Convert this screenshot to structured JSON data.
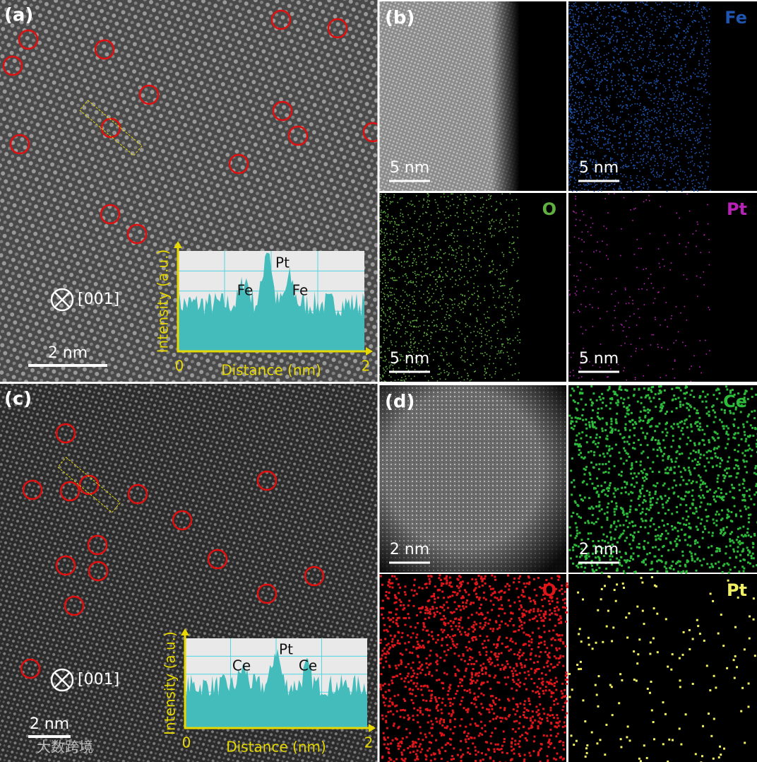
{
  "panels": [
    {
      "label": "(a)",
      "scale_bar": "2 nm",
      "zone_axis": "[001]",
      "profile": {
        "y_label": "Intensity (a.u.)",
        "x_label": "Distance (nm)",
        "x_ticks": [
          0,
          2
        ],
        "peaks": [
          "Fe",
          "Pt",
          "Fe"
        ]
      }
    },
    {
      "label": "(b)",
      "maps": [
        {
          "scale_bar": "5 nm"
        },
        {
          "element": "Fe",
          "color": "#1f55b0",
          "scale_bar": "5 nm"
        },
        {
          "element": "O",
          "color": "#5fb040",
          "scale_bar": "5 nm"
        },
        {
          "element": "Pt",
          "color": "#b820b8",
          "scale_bar": "5 nm"
        }
      ]
    },
    {
      "label": "(c)",
      "scale_bar": "2 nm",
      "zone_axis": "[001]",
      "profile": {
        "y_label": "Intensity (a.u.)",
        "x_label": "Distance (nm)",
        "x_ticks": [
          0,
          2
        ],
        "peaks": [
          "Ce",
          "Pt",
          "Ce"
        ]
      }
    },
    {
      "label": "(d)",
      "maps": [
        {
          "scale_bar": "2 nm"
        },
        {
          "element": "Ce",
          "color": "#2dbb3a",
          "scale_bar": "2 nm"
        },
        {
          "element": "O",
          "color": "#e0161a"
        },
        {
          "element": "Pt",
          "color": "#f0f060"
        }
      ]
    }
  ],
  "watermark": "大数跨境"
}
